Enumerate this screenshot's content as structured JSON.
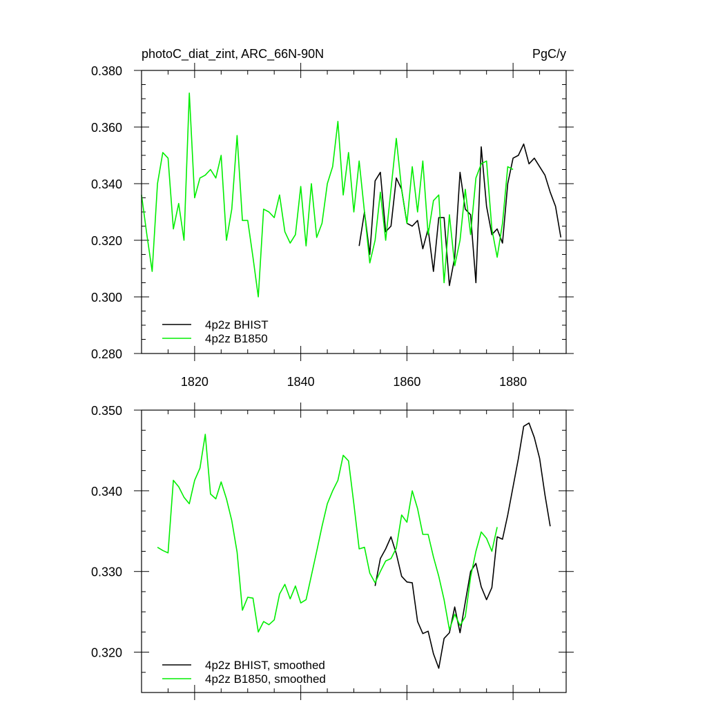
{
  "chart_data": [
    {
      "type": "line",
      "title": "photoC_diat_zint, ARC_66N-90N",
      "units": "PgC/y",
      "xlim": [
        1810,
        1890
      ],
      "ylim": [
        0.28,
        0.38
      ],
      "x_ticks": [
        1820,
        1840,
        1860,
        1880
      ],
      "y_ticks": [
        0.28,
        0.3,
        0.32,
        0.34,
        0.36,
        0.38
      ],
      "y_tick_labels": [
        "0.280",
        "0.300",
        "0.320",
        "0.340",
        "0.360",
        "0.380"
      ],
      "grid": false,
      "legend_position": "bottom-left",
      "series": [
        {
          "name": "4p2z BHIST",
          "color": "#000000",
          "x": [
            1851,
            1852,
            1853,
            1854,
            1855,
            1856,
            1857,
            1858,
            1859,
            1860,
            1861,
            1862,
            1863,
            1864,
            1865,
            1866,
            1867,
            1868,
            1869,
            1870,
            1871,
            1872,
            1873,
            1874,
            1875,
            1876,
            1877,
            1878,
            1879,
            1880,
            1881,
            1882,
            1883,
            1884,
            1885,
            1886,
            1887,
            1888,
            1889
          ],
          "y": [
            0.318,
            0.33,
            0.315,
            0.341,
            0.344,
            0.323,
            0.325,
            0.342,
            0.338,
            0.326,
            0.325,
            0.327,
            0.317,
            0.324,
            0.309,
            0.328,
            0.328,
            0.304,
            0.314,
            0.344,
            0.331,
            0.329,
            0.305,
            0.353,
            0.332,
            0.322,
            0.324,
            0.319,
            0.34,
            0.349,
            0.35,
            0.354,
            0.347,
            0.349,
            0.346,
            0.343,
            0.337,
            0.332,
            0.321
          ]
        },
        {
          "name": "4p2z B1850",
          "color": "#00ee00",
          "x": [
            1810,
            1811,
            1812,
            1813,
            1814,
            1815,
            1816,
            1817,
            1818,
            1819,
            1820,
            1821,
            1822,
            1823,
            1824,
            1825,
            1826,
            1827,
            1828,
            1829,
            1830,
            1831,
            1832,
            1833,
            1834,
            1835,
            1836,
            1837,
            1838,
            1839,
            1840,
            1841,
            1842,
            1843,
            1844,
            1845,
            1846,
            1847,
            1848,
            1849,
            1850,
            1851,
            1852,
            1853,
            1854,
            1855,
            1856,
            1857,
            1858,
            1859,
            1860,
            1861,
            1862,
            1863,
            1864,
            1865,
            1866,
            1867,
            1868,
            1869,
            1870,
            1871,
            1872,
            1873,
            1874,
            1875,
            1876,
            1877,
            1878,
            1879,
            1880
          ],
          "y": [
            0.336,
            0.322,
            0.309,
            0.34,
            0.351,
            0.349,
            0.324,
            0.333,
            0.32,
            0.372,
            0.335,
            0.342,
            0.343,
            0.345,
            0.342,
            0.35,
            0.32,
            0.331,
            0.357,
            0.327,
            0.327,
            0.314,
            0.3,
            0.331,
            0.33,
            0.328,
            0.336,
            0.323,
            0.319,
            0.322,
            0.339,
            0.318,
            0.34,
            0.321,
            0.326,
            0.34,
            0.346,
            0.362,
            0.336,
            0.351,
            0.33,
            0.348,
            0.33,
            0.312,
            0.32,
            0.337,
            0.32,
            0.338,
            0.356,
            0.338,
            0.326,
            0.346,
            0.33,
            0.348,
            0.322,
            0.334,
            0.336,
            0.305,
            0.329,
            0.311,
            0.32,
            0.338,
            0.322,
            0.342,
            0.347,
            0.348,
            0.324,
            0.314,
            0.326,
            0.346,
            0.345
          ]
        }
      ]
    },
    {
      "type": "line",
      "title": "",
      "xlim": [
        1810,
        1890
      ],
      "ylim": [
        0.315,
        0.35
      ],
      "x_ticks": [
        1820,
        1840,
        1860,
        1880
      ],
      "y_ticks": [
        0.32,
        0.33,
        0.34,
        0.35
      ],
      "y_tick_labels": [
        "0.320",
        "0.330",
        "0.340",
        "0.350"
      ],
      "grid": false,
      "legend_position": "bottom-left",
      "series": [
        {
          "name": "4p2z BHIST, smoothed",
          "color": "#000000",
          "x": [
            1854,
            1855,
            1856,
            1857,
            1858,
            1859,
            1860,
            1861,
            1862,
            1863,
            1864,
            1865,
            1866,
            1867,
            1868,
            1869,
            1870,
            1871,
            1872,
            1873,
            1874,
            1875,
            1876,
            1877,
            1878,
            1879,
            1880,
            1881,
            1882,
            1883,
            1884,
            1885,
            1886,
            1887
          ],
          "y": [
            0.3282,
            0.3316,
            0.3328,
            0.3343,
            0.3322,
            0.3294,
            0.3287,
            0.3286,
            0.3238,
            0.3223,
            0.3226,
            0.3198,
            0.318,
            0.3217,
            0.3224,
            0.3256,
            0.3224,
            0.3262,
            0.33,
            0.331,
            0.3281,
            0.3265,
            0.328,
            0.3343,
            0.334,
            0.337,
            0.3405,
            0.344,
            0.348,
            0.3484,
            0.3466,
            0.344,
            0.3395,
            0.3356
          ]
        },
        {
          "name": "4p2z B1850, smoothed",
          "color": "#00ee00",
          "x": [
            1813,
            1814,
            1815,
            1816,
            1817,
            1818,
            1819,
            1820,
            1821,
            1822,
            1823,
            1824,
            1825,
            1826,
            1827,
            1828,
            1829,
            1830,
            1831,
            1832,
            1833,
            1834,
            1835,
            1836,
            1837,
            1838,
            1839,
            1840,
            1841,
            1842,
            1843,
            1844,
            1845,
            1846,
            1847,
            1848,
            1849,
            1850,
            1851,
            1852,
            1853,
            1854,
            1855,
            1856,
            1857,
            1858,
            1859,
            1860,
            1861,
            1862,
            1863,
            1864,
            1865,
            1866,
            1867,
            1868,
            1869,
            1870,
            1871,
            1872,
            1873,
            1874,
            1875,
            1876,
            1877
          ],
          "y": [
            0.333,
            0.3326,
            0.3323,
            0.3413,
            0.3405,
            0.3392,
            0.3384,
            0.3413,
            0.3428,
            0.347,
            0.3396,
            0.339,
            0.3411,
            0.339,
            0.3363,
            0.3324,
            0.3252,
            0.3268,
            0.3267,
            0.3225,
            0.3238,
            0.3234,
            0.324,
            0.3272,
            0.3284,
            0.3266,
            0.3282,
            0.3261,
            0.3265,
            0.3295,
            0.3325,
            0.3356,
            0.3384,
            0.34,
            0.3413,
            0.3444,
            0.3437,
            0.3384,
            0.3328,
            0.333,
            0.3298,
            0.3286,
            0.33,
            0.3313,
            0.3316,
            0.3329,
            0.337,
            0.3361,
            0.34,
            0.3378,
            0.3346,
            0.3346,
            0.3318,
            0.3294,
            0.3265,
            0.3228,
            0.3247,
            0.3233,
            0.3244,
            0.3293,
            0.3325,
            0.3349,
            0.3341,
            0.3325,
            0.3355
          ]
        }
      ]
    }
  ]
}
